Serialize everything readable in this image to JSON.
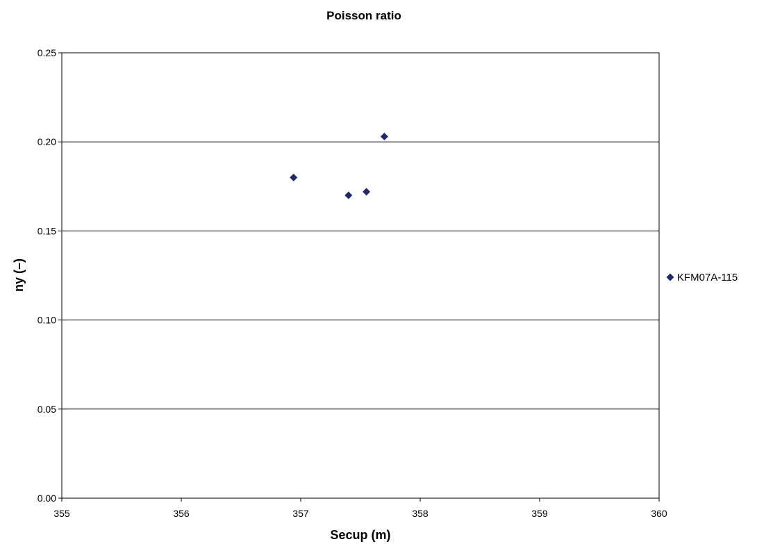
{
  "chart_data": {
    "type": "scatter",
    "title": "Poisson ratio",
    "xlabel": "Secup (m)",
    "ylabel": "ny (–)",
    "xlim": [
      355,
      360
    ],
    "ylim": [
      0,
      0.25
    ],
    "x_ticks": [
      "355",
      "356",
      "357",
      "358",
      "359",
      "360"
    ],
    "y_ticks": [
      "0.00",
      "0.05",
      "0.10",
      "0.15",
      "0.20",
      "0.25"
    ],
    "grid": "horizontal",
    "legend_position": "right",
    "series": [
      {
        "name": "KFM07A-115",
        "marker": "diamond",
        "color": "#1f2a6b",
        "points": [
          {
            "x": 356.94,
            "y": 0.18
          },
          {
            "x": 357.4,
            "y": 0.17
          },
          {
            "x": 357.55,
            "y": 0.172
          },
          {
            "x": 357.7,
            "y": 0.203
          }
        ]
      }
    ]
  }
}
